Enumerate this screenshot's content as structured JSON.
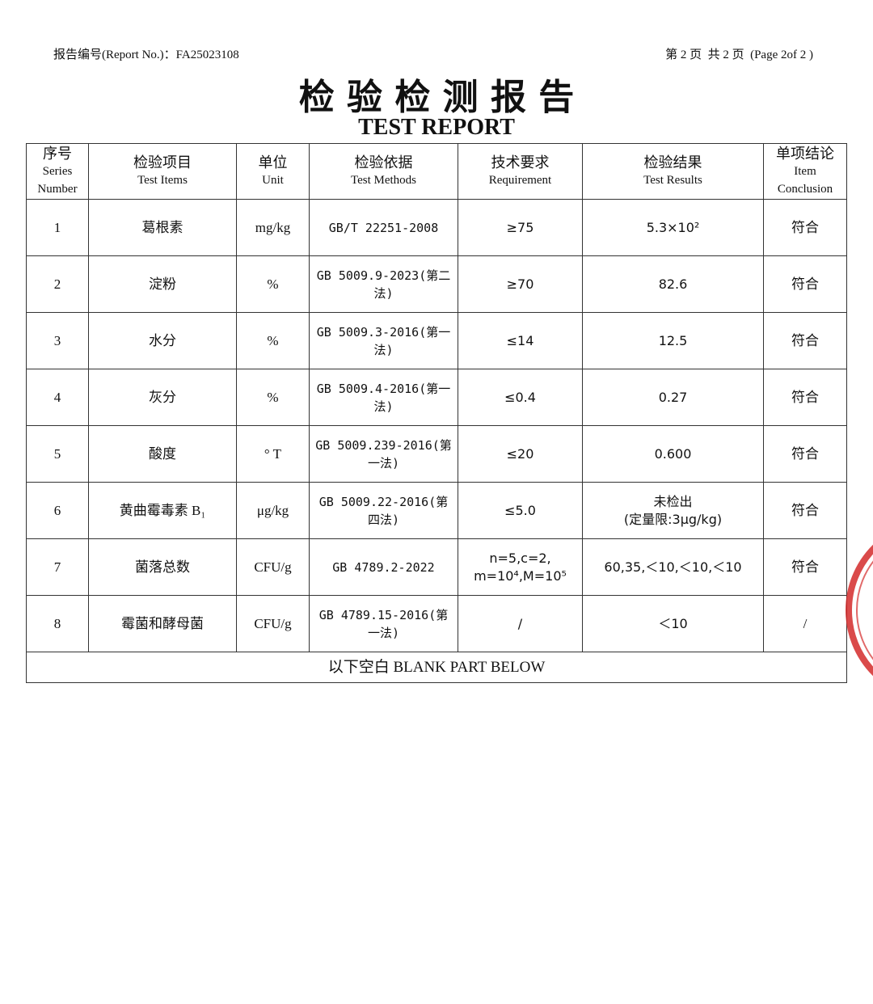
{
  "header": {
    "report_no": "报告编号(Report No.)：FA25023108",
    "page": "第 2 页  共 2 页  (Page 2of 2 )"
  },
  "title": "检 验 检 测 报 告",
  "subtitle": "TEST REPORT",
  "table": {
    "columns": [
      [
        "序号",
        "Series",
        "Number"
      ],
      [
        "检验项目",
        "Test Items"
      ],
      [
        "单位",
        "Unit"
      ],
      [
        "检验依据",
        "Test Methods"
      ],
      [
        "技术要求",
        "Requirement"
      ],
      [
        "检验结果",
        "Test Results"
      ],
      [
        "单项结论",
        "Item",
        "Conclusion"
      ]
    ],
    "rows": [
      [
        "1",
        "葛根素",
        "mg/kg",
        "GB/T 22251-2008",
        "≥75",
        "5.3×10²",
        "符合"
      ],
      [
        "2",
        "淀粉",
        "%",
        "GB 5009.9-2023(第二法)",
        "≥70",
        "82.6",
        "符合"
      ],
      [
        "3",
        "水分",
        "%",
        "GB 5009.3-2016(第一法)",
        "≤14",
        "12.5",
        "符合"
      ],
      [
        "4",
        "灰分",
        "%",
        "GB 5009.4-2016(第一法)",
        "≤0.4",
        "0.27",
        "符合"
      ],
      [
        "5",
        "酸度",
        "° T",
        "GB 5009.239-2016(第一法)",
        "≤20",
        "0.600",
        "符合"
      ],
      [
        "6",
        "黄曲霉毒素 B₁",
        "μg/kg",
        "GB 5009.22-2016(第四法)",
        "≤5.0",
        [
          "未检出",
          "(定量限:3μg/kg)"
        ],
        "符合"
      ],
      [
        "7",
        "菌落总数",
        "CFU/g",
        "GB 4789.2-2022",
        [
          "n=5,c=2,",
          "m=10⁴,M=10⁵"
        ],
        "60,35,＜10,＜10,＜10",
        "符合"
      ],
      [
        "8",
        "霉菌和酵母菌",
        "CFU/g",
        "GB 4789.15-2016(第一法)",
        "/",
        "＜10",
        "/"
      ]
    ],
    "footer": "以下空白 BLANK PART BELOW"
  }
}
